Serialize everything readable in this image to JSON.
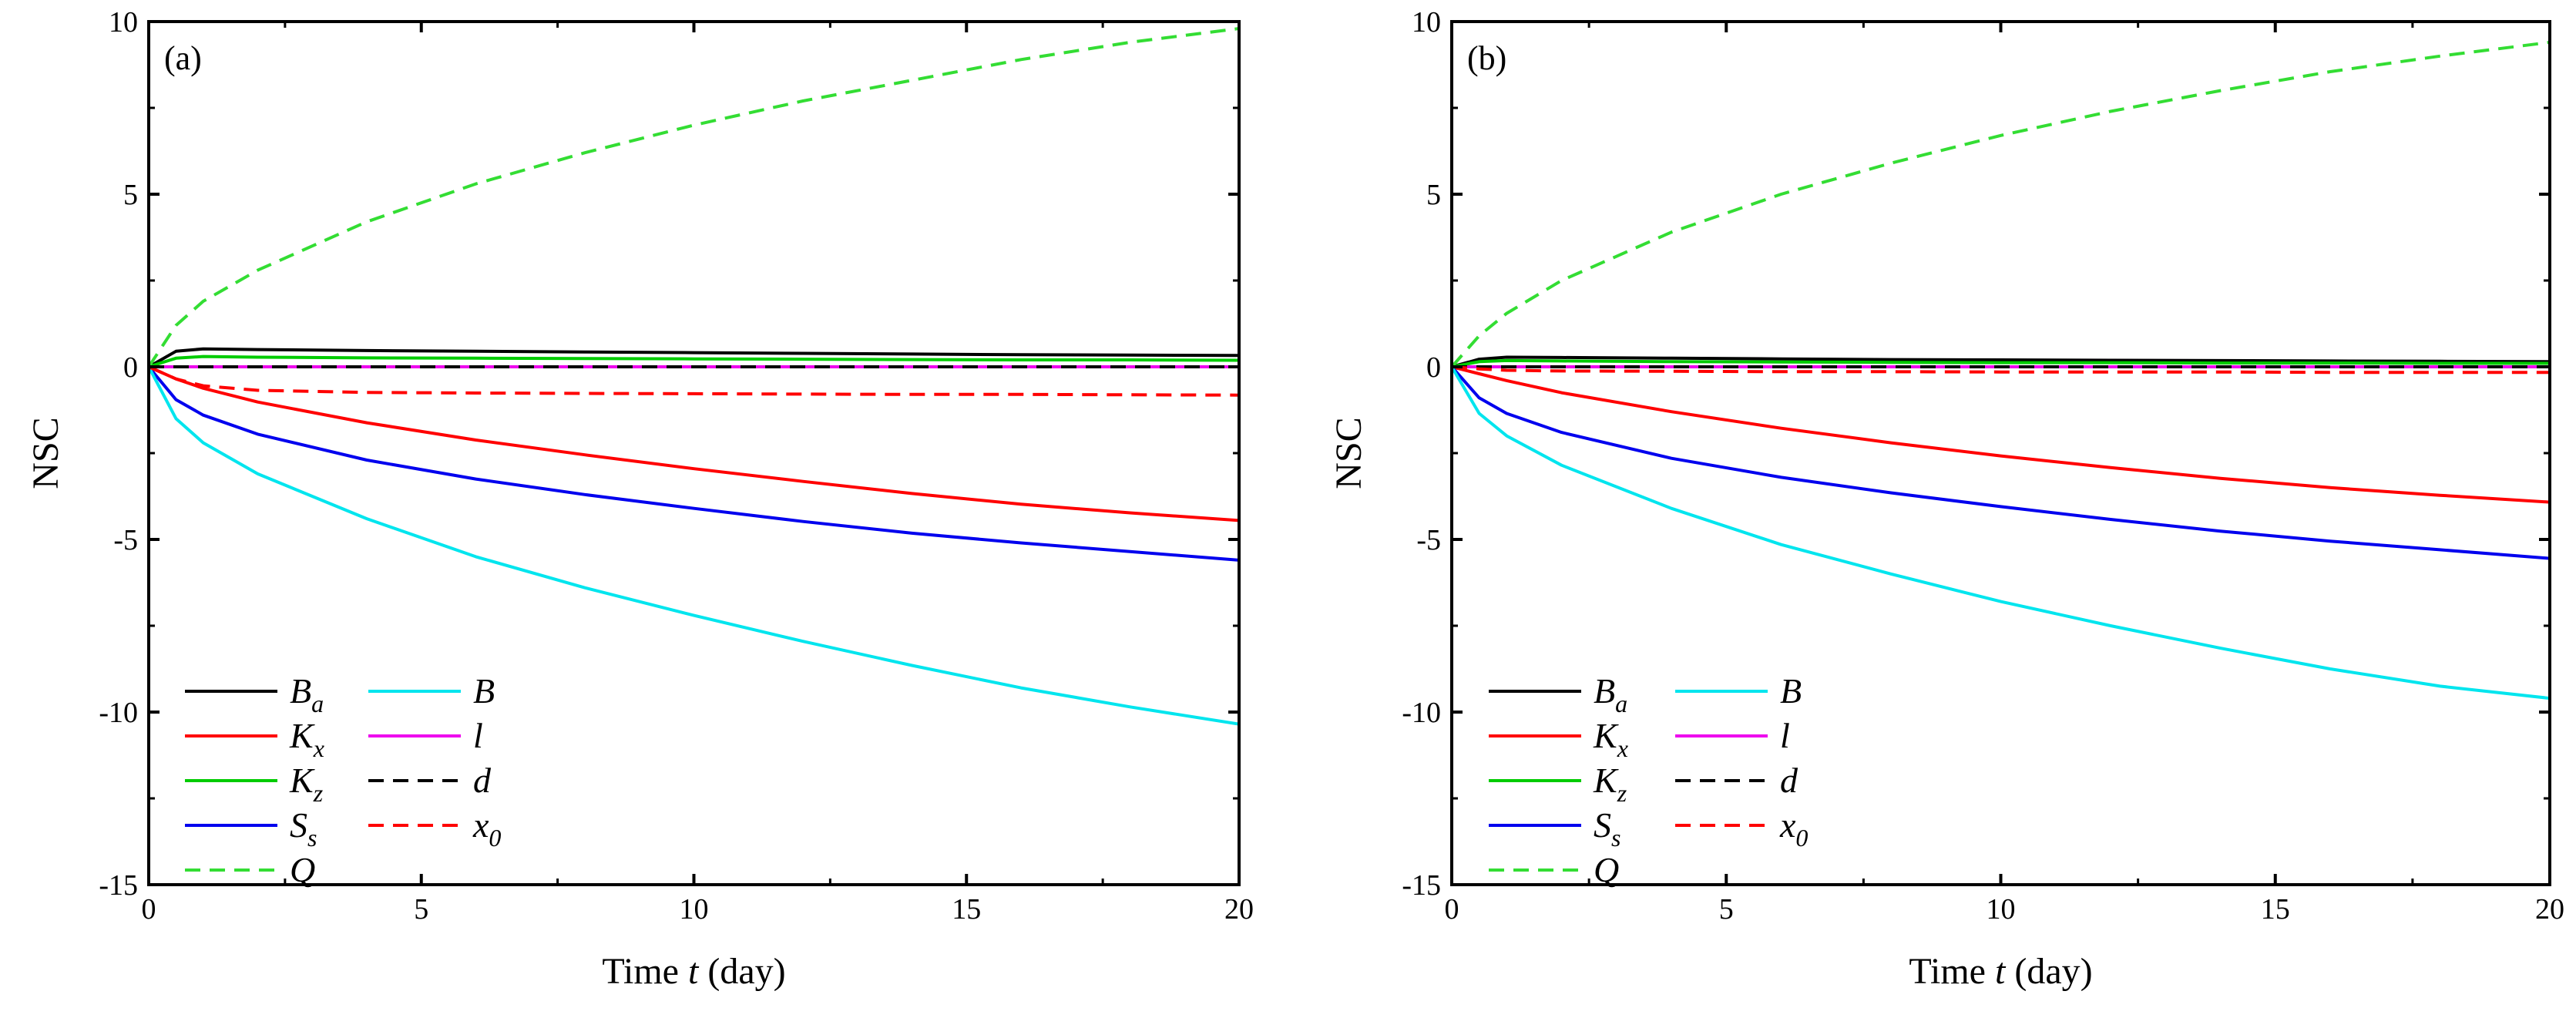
{
  "chart_data": [
    {
      "type": "line",
      "panel": "(a)",
      "xlabel_prefix": "Time ",
      "xlabel_var": "t",
      "xlabel_suffix": " (day)",
      "ylabel": "NSC",
      "xlim": [
        0,
        20
      ],
      "ylim": [
        -15,
        10
      ],
      "xticks": [
        0,
        5,
        10,
        15,
        20
      ],
      "yticks": [
        -15,
        -10,
        -5,
        0,
        5,
        10
      ],
      "legend_position": "bottom-left",
      "series": [
        {
          "key": "Ba",
          "label": "B",
          "sub": "a",
          "color": "#000000",
          "dash": false,
          "x": [
            0,
            0.5,
            1,
            2,
            4,
            6,
            8,
            10,
            12,
            14,
            16,
            18,
            20
          ],
          "y": [
            0,
            0.45,
            0.52,
            0.5,
            0.47,
            0.45,
            0.43,
            0.41,
            0.39,
            0.37,
            0.35,
            0.34,
            0.33
          ]
        },
        {
          "key": "Kx",
          "label": "K",
          "sub": "x",
          "color": "#ff0000",
          "dash": false,
          "x": [
            0,
            0.5,
            1,
            2,
            4,
            6,
            8,
            10,
            12,
            14,
            16,
            18,
            20
          ],
          "y": [
            0,
            -0.35,
            -0.62,
            -1.02,
            -1.62,
            -2.12,
            -2.55,
            -2.95,
            -3.32,
            -3.67,
            -3.98,
            -4.23,
            -4.45
          ]
        },
        {
          "key": "Kz",
          "label": "K",
          "sub": "z",
          "color": "#00cc00",
          "dash": false,
          "x": [
            0,
            0.5,
            1,
            2,
            4,
            6,
            8,
            10,
            12,
            14,
            16,
            18,
            20
          ],
          "y": [
            0,
            0.25,
            0.3,
            0.28,
            0.26,
            0.25,
            0.24,
            0.23,
            0.22,
            0.21,
            0.2,
            0.2,
            0.19
          ]
        },
        {
          "key": "Ss",
          "label": "S",
          "sub": "s",
          "color": "#0000ee",
          "dash": false,
          "x": [
            0,
            0.5,
            1,
            2,
            4,
            6,
            8,
            10,
            12,
            14,
            16,
            18,
            20
          ],
          "y": [
            0,
            -0.95,
            -1.4,
            -1.95,
            -2.7,
            -3.25,
            -3.7,
            -4.1,
            -4.48,
            -4.82,
            -5.1,
            -5.35,
            -5.6
          ]
        },
        {
          "key": "Q",
          "label": "Q",
          "sub": "",
          "color": "#33dd33",
          "dash": true,
          "x": [
            0,
            0.5,
            1,
            2,
            4,
            6,
            8,
            10,
            12,
            14,
            16,
            18,
            20
          ],
          "y": [
            0,
            1.2,
            1.9,
            2.8,
            4.2,
            5.3,
            6.2,
            7.0,
            7.7,
            8.3,
            8.9,
            9.4,
            9.8
          ]
        },
        {
          "key": "B",
          "label": "B",
          "sub": "",
          "color": "#00e5ee",
          "dash": false,
          "x": [
            0,
            0.5,
            1,
            2,
            4,
            6,
            8,
            10,
            12,
            14,
            16,
            18,
            20
          ],
          "y": [
            0,
            -1.5,
            -2.2,
            -3.1,
            -4.4,
            -5.5,
            -6.4,
            -7.2,
            -7.95,
            -8.65,
            -9.3,
            -9.85,
            -10.35
          ]
        },
        {
          "key": "l",
          "label": "l",
          "sub": "",
          "color": "#ee00ee",
          "dash": false,
          "x": [
            0,
            20
          ],
          "y": [
            0,
            0
          ]
        },
        {
          "key": "d",
          "label": "d",
          "sub": "",
          "color": "#000000",
          "dash": true,
          "x": [
            0,
            20
          ],
          "y": [
            0,
            0
          ]
        },
        {
          "key": "x0",
          "label": "x",
          "sub": "0",
          "color": "#ff0000",
          "dash": true,
          "x": [
            0,
            0.5,
            1,
            2,
            4,
            6,
            8,
            10,
            12,
            14,
            16,
            18,
            20
          ],
          "y": [
            0,
            -0.35,
            -0.55,
            -0.68,
            -0.74,
            -0.76,
            -0.77,
            -0.78,
            -0.79,
            -0.8,
            -0.8,
            -0.81,
            -0.82
          ]
        }
      ]
    },
    {
      "type": "line",
      "panel": "(b)",
      "xlabel_prefix": "Time ",
      "xlabel_var": "t",
      "xlabel_suffix": " (day)",
      "ylabel": "NSC",
      "xlim": [
        0,
        20
      ],
      "ylim": [
        -15,
        10
      ],
      "xticks": [
        0,
        5,
        10,
        15,
        20
      ],
      "yticks": [
        -15,
        -10,
        -5,
        0,
        5,
        10
      ],
      "legend_position": "bottom-left",
      "series": [
        {
          "key": "Ba",
          "label": "B",
          "sub": "a",
          "color": "#000000",
          "dash": false,
          "x": [
            0,
            0.5,
            1,
            2,
            4,
            6,
            8,
            10,
            12,
            14,
            16,
            18,
            20
          ],
          "y": [
            0,
            0.22,
            0.28,
            0.27,
            0.25,
            0.23,
            0.21,
            0.2,
            0.19,
            0.18,
            0.17,
            0.16,
            0.15
          ]
        },
        {
          "key": "Kx",
          "label": "K",
          "sub": "x",
          "color": "#ff0000",
          "dash": false,
          "x": [
            0,
            0.5,
            1,
            2,
            4,
            6,
            8,
            10,
            12,
            14,
            16,
            18,
            20
          ],
          "y": [
            0,
            -0.2,
            -0.4,
            -0.75,
            -1.3,
            -1.78,
            -2.2,
            -2.58,
            -2.92,
            -3.23,
            -3.5,
            -3.72,
            -3.92
          ]
        },
        {
          "key": "Kz",
          "label": "K",
          "sub": "z",
          "color": "#00cc00",
          "dash": false,
          "x": [
            0,
            0.5,
            1,
            2,
            4,
            6,
            8,
            10,
            12,
            14,
            16,
            18,
            20
          ],
          "y": [
            0,
            0.15,
            0.18,
            0.17,
            0.15,
            0.14,
            0.13,
            0.12,
            0.12,
            0.11,
            0.11,
            0.1,
            0.1
          ]
        },
        {
          "key": "Ss",
          "label": "S",
          "sub": "s",
          "color": "#0000ee",
          "dash": false,
          "x": [
            0,
            0.5,
            1,
            2,
            4,
            6,
            8,
            10,
            12,
            14,
            16,
            18,
            20
          ],
          "y": [
            0,
            -0.9,
            -1.35,
            -1.9,
            -2.65,
            -3.2,
            -3.65,
            -4.05,
            -4.42,
            -4.76,
            -5.05,
            -5.3,
            -5.55
          ]
        },
        {
          "key": "Q",
          "label": "Q",
          "sub": "",
          "color": "#33dd33",
          "dash": true,
          "x": [
            0,
            0.5,
            1,
            2,
            4,
            6,
            8,
            10,
            12,
            14,
            16,
            18,
            20
          ],
          "y": [
            0,
            0.9,
            1.55,
            2.5,
            3.9,
            5.0,
            5.9,
            6.7,
            7.4,
            8.0,
            8.55,
            9.0,
            9.4
          ]
        },
        {
          "key": "B",
          "label": "B",
          "sub": "",
          "color": "#00e5ee",
          "dash": false,
          "x": [
            0,
            0.5,
            1,
            2,
            4,
            6,
            8,
            10,
            12,
            14,
            16,
            18,
            20
          ],
          "y": [
            0,
            -1.35,
            -2.0,
            -2.85,
            -4.1,
            -5.15,
            -6.0,
            -6.8,
            -7.5,
            -8.15,
            -8.75,
            -9.25,
            -9.6
          ]
        },
        {
          "key": "l",
          "label": "l",
          "sub": "",
          "color": "#ee00ee",
          "dash": false,
          "x": [
            0,
            20
          ],
          "y": [
            0,
            0
          ]
        },
        {
          "key": "d",
          "label": "d",
          "sub": "",
          "color": "#000000",
          "dash": true,
          "x": [
            0,
            20
          ],
          "y": [
            0,
            0
          ]
        },
        {
          "key": "x0",
          "label": "x",
          "sub": "0",
          "color": "#ff0000",
          "dash": true,
          "x": [
            0,
            0.5,
            1,
            2,
            4,
            6,
            8,
            10,
            12,
            14,
            16,
            18,
            20
          ],
          "y": [
            0,
            -0.06,
            -0.1,
            -0.12,
            -0.13,
            -0.14,
            -0.14,
            -0.15,
            -0.15,
            -0.15,
            -0.16,
            -0.16,
            -0.16
          ]
        }
      ]
    }
  ]
}
